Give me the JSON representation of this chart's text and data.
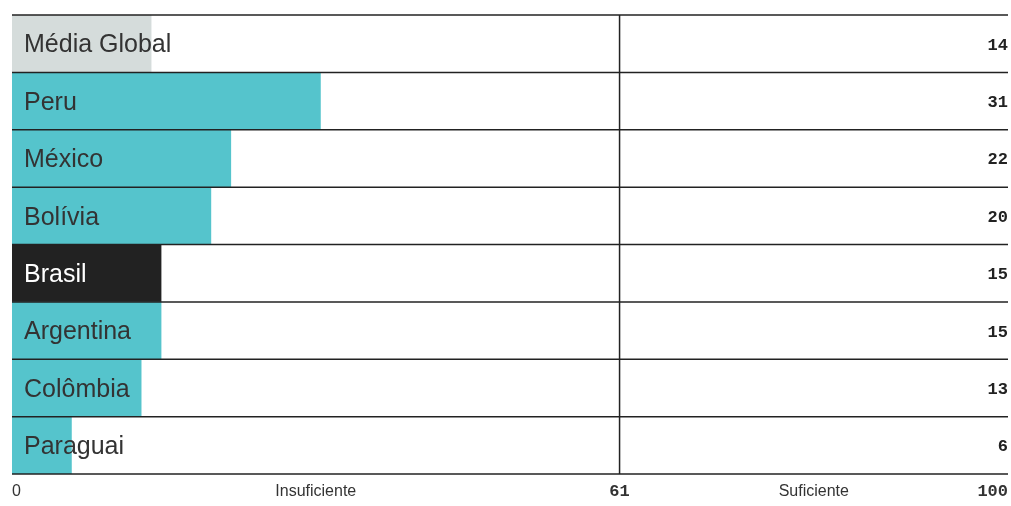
{
  "chart_data": {
    "type": "bar",
    "orientation": "horizontal",
    "categories": [
      "Média Global",
      "Peru",
      "México",
      "Bolívia",
      "Brasil",
      "Argentina",
      "Colômbia",
      "Paraguai"
    ],
    "values": [
      14,
      31,
      22,
      20,
      15,
      15,
      13,
      6
    ],
    "colors": [
      "#d5dcdb",
      "#55c4cc",
      "#55c4cc",
      "#55c4cc",
      "#222222",
      "#55c4cc",
      "#55c4cc",
      "#55c4cc"
    ],
    "xlim": [
      0,
      100
    ],
    "xticks": [
      0,
      61,
      100
    ],
    "ref_lines": [
      {
        "axis": "x",
        "value": 61,
        "color": "#222222"
      }
    ],
    "annotations": [
      "Insuficiente",
      "Suficiente"
    ],
    "data_labels": true
  }
}
